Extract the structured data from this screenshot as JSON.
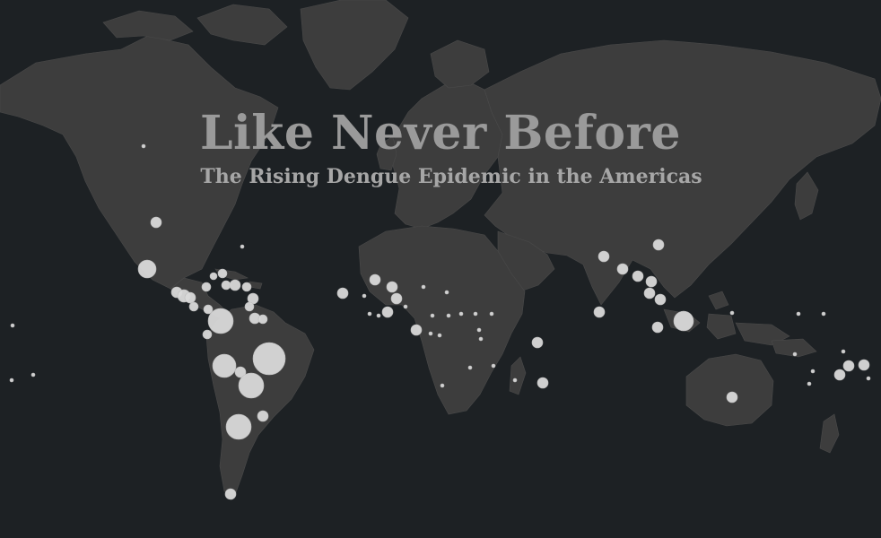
{
  "title": "Like Never Before",
  "subtitle": "The Rising Dengue Epidemic in the Americas",
  "colors": {
    "background": "#1d2124",
    "land": "#3d3d3d",
    "marker": "#d9d9d9"
  },
  "map": {
    "projection": "mercator",
    "marker_shape": "circle",
    "marker_encoding": "circle size scales with case count (no legend shown)"
  }
}
